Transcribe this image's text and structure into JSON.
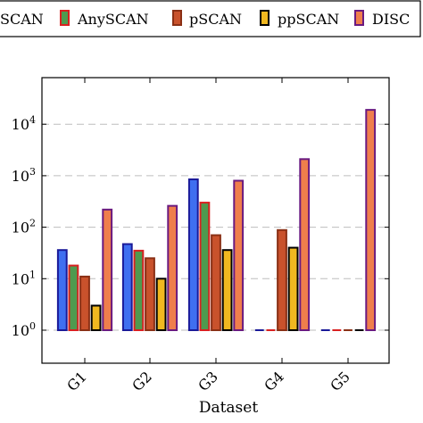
{
  "chart_data": {
    "type": "bar",
    "scale": "log",
    "categories": [
      "G1",
      "G2",
      "G3",
      "G4",
      "G5"
    ],
    "xlabel": "Dataset",
    "ylabel": "",
    "ylim": [
      0.3,
      60000
    ],
    "yticks": [
      {
        "value": 1,
        "mantissa": "10",
        "exp": "0"
      },
      {
        "value": 10,
        "mantissa": "10",
        "exp": "1"
      },
      {
        "value": 100,
        "mantissa": "10",
        "exp": "2"
      },
      {
        "value": 1000,
        "mantissa": "10",
        "exp": "3"
      },
      {
        "value": 10000,
        "mantissa": "10",
        "exp": "4"
      }
    ],
    "grid": "horizontal dashed",
    "legend_position": "top",
    "series": [
      {
        "name": "SCAN",
        "fill": "#3f6ff0",
        "stroke": "#1a1a99",
        "values": [
          36,
          47,
          850,
          null,
          null
        ]
      },
      {
        "name": "AnySCAN",
        "fill": "#4f9a4f",
        "stroke": "#d92020",
        "values": [
          18,
          35,
          300,
          null,
          null
        ]
      },
      {
        "name": "pSCAN",
        "fill": "#c9522c",
        "stroke": "#8a3015",
        "values": [
          11,
          25,
          70,
          88,
          null
        ]
      },
      {
        "name": "ppSCAN",
        "fill": "#f0b820",
        "stroke": "#000000",
        "values": [
          3,
          10,
          36,
          40,
          null
        ]
      },
      {
        "name": "DISC",
        "fill": "#ef7e4c",
        "stroke": "#6a1a80",
        "values": [
          220,
          260,
          800,
          2100,
          19000
        ]
      }
    ]
  }
}
